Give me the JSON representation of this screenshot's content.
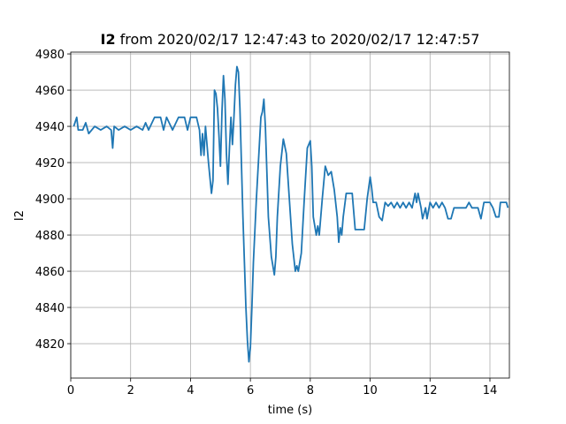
{
  "chart_data": {
    "type": "line",
    "title_bold": "I2",
    "title": "from 2020/02/17 12:47:43 to 2020/02/17 12:47:57",
    "xlabel": "time (s)",
    "ylabel": "I2",
    "color": "#1f77b4",
    "grid": true,
    "xlim": [
      0,
      14.65
    ],
    "ylim": [
      4801,
      4981
    ],
    "xticks": [
      0,
      2,
      4,
      6,
      8,
      10,
      12,
      14
    ],
    "yticks": [
      4820,
      4840,
      4860,
      4880,
      4900,
      4920,
      4940,
      4960,
      4980
    ],
    "x": [
      0.1,
      0.2,
      0.25,
      0.4,
      0.5,
      0.6,
      0.8,
      1.0,
      1.2,
      1.35,
      1.4,
      1.45,
      1.6,
      1.8,
      2.0,
      2.2,
      2.4,
      2.5,
      2.6,
      2.8,
      3.0,
      3.1,
      3.2,
      3.4,
      3.6,
      3.8,
      3.9,
      4.0,
      4.2,
      4.3,
      4.35,
      4.4,
      4.45,
      4.5,
      4.6,
      4.7,
      4.75,
      4.8,
      4.85,
      4.9,
      4.95,
      5.0,
      5.05,
      5.1,
      5.15,
      5.2,
      5.25,
      5.3,
      5.35,
      5.4,
      5.45,
      5.5,
      5.55,
      5.6,
      5.65,
      5.7,
      5.75,
      5.8,
      5.85,
      5.9,
      5.95,
      6.0,
      6.05,
      6.1,
      6.2,
      6.3,
      6.35,
      6.4,
      6.45,
      6.5,
      6.55,
      6.6,
      6.7,
      6.8,
      6.85,
      6.9,
      7.0,
      7.1,
      7.2,
      7.3,
      7.4,
      7.5,
      7.55,
      7.6,
      7.7,
      7.8,
      7.9,
      8.0,
      8.05,
      8.1,
      8.2,
      8.25,
      8.3,
      8.4,
      8.5,
      8.6,
      8.7,
      8.8,
      8.9,
      8.95,
      9.0,
      9.05,
      9.1,
      9.2,
      9.4,
      9.5,
      9.8,
      9.9,
      10.0,
      10.05,
      10.1,
      10.2,
      10.3,
      10.4,
      10.5,
      10.6,
      10.7,
      10.8,
      10.9,
      11.0,
      11.1,
      11.2,
      11.3,
      11.4,
      11.5,
      11.55,
      11.6,
      11.7,
      11.75,
      11.85,
      11.9,
      12.0,
      12.1,
      12.2,
      12.3,
      12.4,
      12.5,
      12.6,
      12.7,
      12.8,
      13.0,
      13.2,
      13.3,
      13.4,
      13.6,
      13.7,
      13.8,
      14.0,
      14.1,
      14.2,
      14.3,
      14.35,
      14.55,
      14.6
    ],
    "values": [
      4940,
      4945,
      4938,
      4938,
      4942,
      4936,
      4940,
      4938,
      4940,
      4938,
      4928,
      4940,
      4938,
      4940,
      4938,
      4940,
      4938,
      4942,
      4938,
      4945,
      4945,
      4938,
      4945,
      4938,
      4945,
      4945,
      4938,
      4945,
      4945,
      4938,
      4924,
      4936,
      4924,
      4940,
      4920,
      4903,
      4910,
      4960,
      4958,
      4950,
      4935,
      4918,
      4948,
      4968,
      4955,
      4925,
      4908,
      4928,
      4945,
      4930,
      4945,
      4963,
      4973,
      4970,
      4950,
      4920,
      4890,
      4865,
      4840,
      4822,
      4810,
      4818,
      4840,
      4865,
      4900,
      4930,
      4945,
      4948,
      4955,
      4940,
      4915,
      4890,
      4868,
      4858,
      4868,
      4890,
      4918,
      4933,
      4925,
      4900,
      4875,
      4860,
      4863,
      4860,
      4870,
      4900,
      4928,
      4932,
      4918,
      4890,
      4880,
      4885,
      4880,
      4900,
      4918,
      4913,
      4915,
      4905,
      4890,
      4876,
      4884,
      4880,
      4890,
      4903,
      4903,
      4883,
      4883,
      4900,
      4912,
      4906,
      4898,
      4898,
      4890,
      4888,
      4898,
      4896,
      4898,
      4895,
      4898,
      4895,
      4898,
      4895,
      4898,
      4895,
      4903,
      4898,
      4903,
      4895,
      4889,
      4895,
      4889,
      4898,
      4895,
      4898,
      4895,
      4898,
      4895,
      4889,
      4889,
      4895,
      4895,
      4895,
      4898,
      4895,
      4895,
      4889,
      4898,
      4898,
      4895,
      4890,
      4890,
      4898,
      4898,
      4895
    ]
  }
}
